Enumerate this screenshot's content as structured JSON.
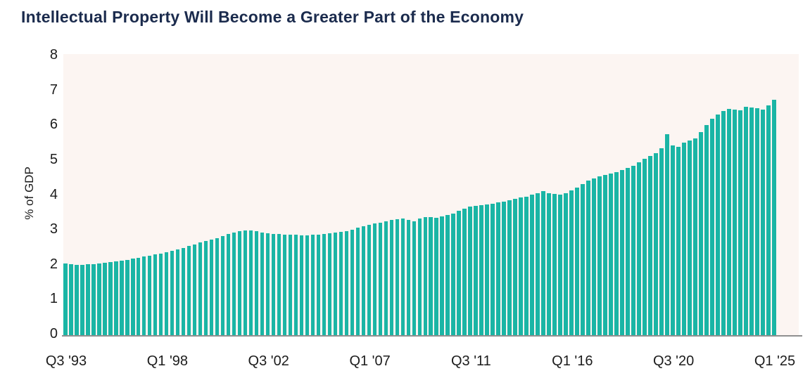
{
  "title": "Intellectual Property Will Become a Greater Part of the Economy",
  "chart_data": {
    "type": "bar",
    "title": "Intellectual Property Will Become a Greater Part of the Economy",
    "xlabel": "",
    "ylabel": "% of GDP",
    "ylim": [
      0,
      8
    ],
    "yticks": [
      0,
      1,
      2,
      3,
      4,
      5,
      6,
      7,
      8
    ],
    "frequency": "quarterly",
    "x_range": "Q3 1993 to Q1 2025",
    "grid": false,
    "legend": "none",
    "xticks": [
      {
        "index": 0,
        "label": "Q3 '93"
      },
      {
        "index": 18,
        "label": "Q1 '98"
      },
      {
        "index": 36,
        "label": "Q3 '02"
      },
      {
        "index": 54,
        "label": "Q1 '07"
      },
      {
        "index": 72,
        "label": "Q3 '11"
      },
      {
        "index": 90,
        "label": "Q1 '16"
      },
      {
        "index": 108,
        "label": "Q3 '20"
      },
      {
        "index": 126,
        "label": "Q1 '25"
      }
    ],
    "values": [
      2.06,
      2.03,
      2.02,
      2.02,
      2.03,
      2.04,
      2.06,
      2.07,
      2.09,
      2.11,
      2.14,
      2.16,
      2.19,
      2.22,
      2.25,
      2.28,
      2.31,
      2.34,
      2.38,
      2.41,
      2.45,
      2.5,
      2.55,
      2.6,
      2.65,
      2.69,
      2.73,
      2.78,
      2.84,
      2.89,
      2.94,
      2.97,
      2.99,
      3.0,
      2.97,
      2.94,
      2.92,
      2.9,
      2.89,
      2.88,
      2.87,
      2.87,
      2.86,
      2.86,
      2.87,
      2.88,
      2.89,
      2.91,
      2.93,
      2.95,
      2.98,
      3.02,
      3.07,
      3.11,
      3.15,
      3.19,
      3.22,
      3.26,
      3.29,
      3.31,
      3.33,
      3.3,
      3.26,
      3.33,
      3.38,
      3.37,
      3.36,
      3.39,
      3.43,
      3.48,
      3.55,
      3.62,
      3.67,
      3.7,
      3.72,
      3.74,
      3.76,
      3.79,
      3.82,
      3.86,
      3.9,
      3.93,
      3.96,
      4.01,
      4.06,
      4.11,
      4.05,
      4.03,
      4.02,
      4.05,
      4.13,
      4.22,
      4.32,
      4.4,
      4.46,
      4.52,
      4.57,
      4.61,
      4.65,
      4.7,
      4.76,
      4.83,
      4.92,
      5.02,
      5.11,
      5.18,
      5.32,
      5.73,
      5.41,
      5.37,
      5.48,
      5.55,
      5.61,
      5.79,
      5.99,
      6.16,
      6.28,
      6.38,
      6.45,
      6.43,
      6.41,
      6.5,
      6.49,
      6.47,
      6.43,
      6.54,
      6.71
    ],
    "colors": {
      "bar": "#1ab5a5",
      "plot_bg": "#fcf5f2",
      "title": "#1b2b4d",
      "axis_text": "#1c1c1c",
      "baseline": "#8f8f8f"
    }
  }
}
